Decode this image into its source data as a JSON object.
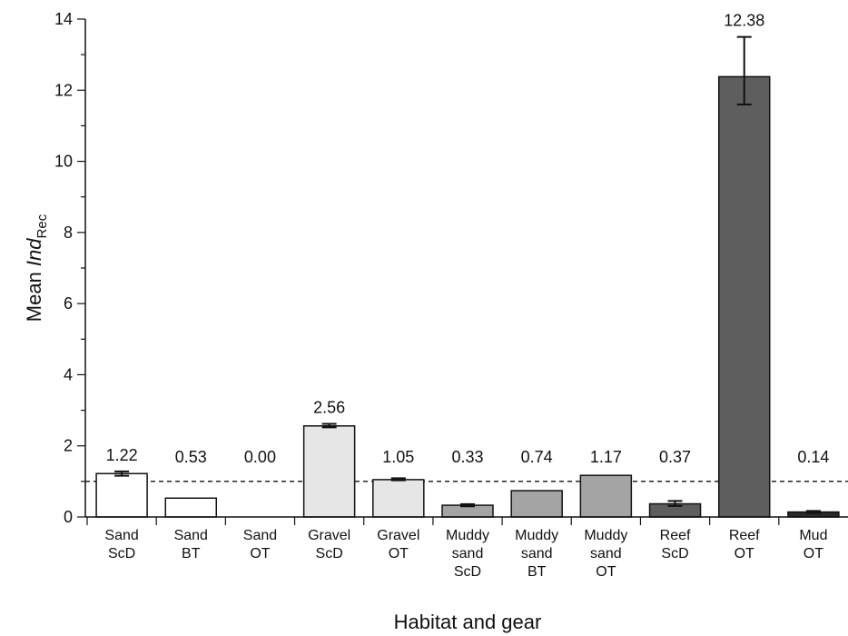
{
  "chart_data": {
    "type": "bar",
    "title": "",
    "xlabel": "Habitat and gear",
    "ylabel_prefix": "Mean ",
    "ylabel_italic": "Ind",
    "ylabel_subscript": "Rec",
    "ylim": [
      0,
      14
    ],
    "yticks": [
      "0",
      "2",
      "4",
      "6",
      "8",
      "10",
      "12",
      "14"
    ],
    "reference_line": 1,
    "categories": [
      [
        "Sand",
        "ScD"
      ],
      [
        "Sand",
        "BT"
      ],
      [
        "Sand",
        "OT"
      ],
      [
        "Gravel",
        "ScD"
      ],
      [
        "Gravel",
        "OT"
      ],
      [
        "Muddy",
        "sand",
        "ScD"
      ],
      [
        "Muddy",
        "sand",
        "BT"
      ],
      [
        "Muddy",
        "sand",
        "OT"
      ],
      [
        "Reef",
        "ScD"
      ],
      [
        "Reef",
        "OT"
      ],
      [
        "Mud",
        "OT"
      ]
    ],
    "values": [
      1.22,
      0.53,
      0.0,
      2.56,
      1.05,
      0.33,
      0.74,
      1.17,
      0.37,
      12.38,
      0.14
    ],
    "value_labels": [
      "1.22",
      "0.53",
      "0.00",
      "2.56",
      "1.05",
      "0.33",
      "0.74",
      "1.17",
      "0.37",
      "12.38",
      "0.14"
    ],
    "error_bars": [
      [
        1.16,
        1.28
      ],
      null,
      null,
      [
        2.52,
        2.62
      ],
      [
        1.03,
        1.09
      ],
      [
        0.3,
        0.36
      ],
      null,
      null,
      [
        0.31,
        0.45
      ],
      [
        11.6,
        13.5
      ],
      [
        0.11,
        0.17
      ]
    ],
    "bar_colors": [
      "#ffffff",
      "#ffffff",
      "#ffffff",
      "#e6e6e6",
      "#e6e6e6",
      "#a4a4a4",
      "#a4a4a4",
      "#a4a4a4",
      "#5e5e5e",
      "#5e5e5e",
      "#2a2a2a"
    ],
    "grid": false,
    "legend": "none"
  }
}
